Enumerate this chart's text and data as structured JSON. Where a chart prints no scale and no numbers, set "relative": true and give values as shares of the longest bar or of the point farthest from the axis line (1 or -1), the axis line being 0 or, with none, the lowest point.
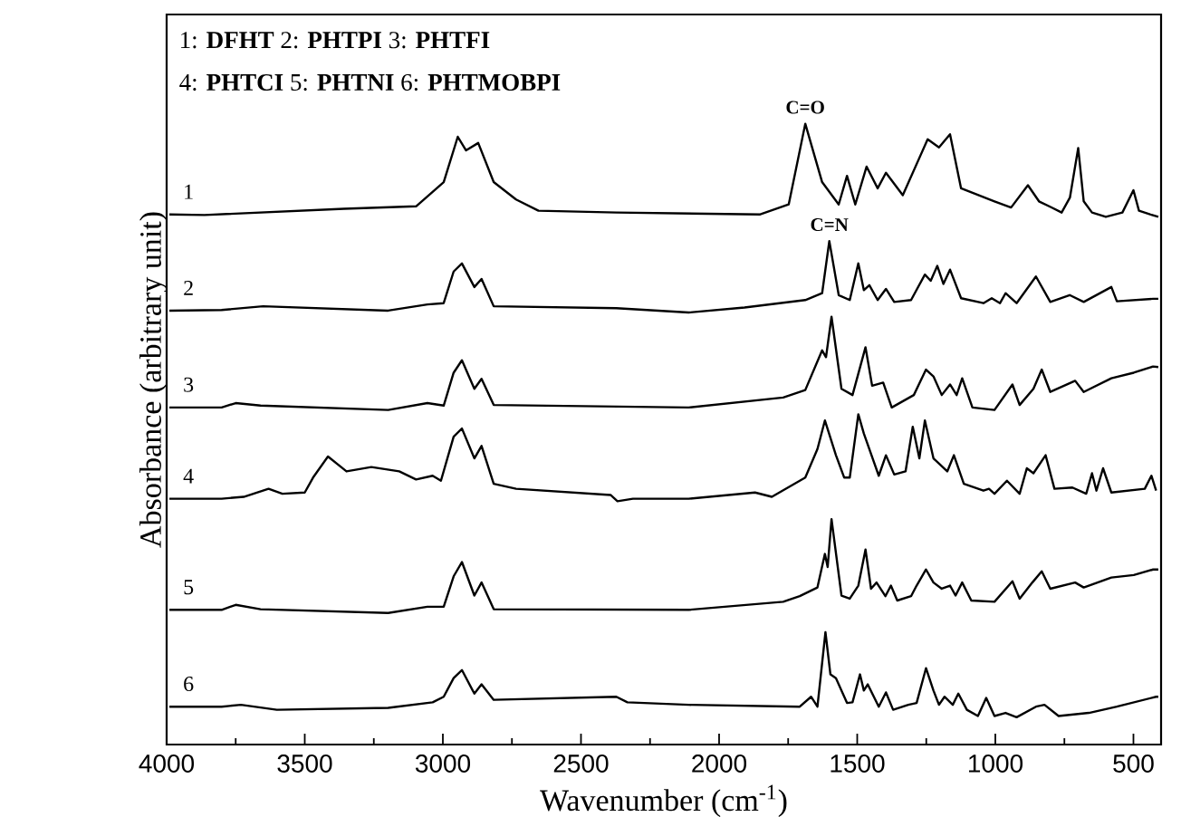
{
  "chart_data": {
    "type": "line",
    "relative": true,
    "marker": "none",
    "xlabel": "Wavenumber (cm$^{-1}$)",
    "ylabel": "Absorbance (arbitrary unit)",
    "xlim": [
      4000,
      400
    ],
    "xticks": [
      4000,
      {
        "value": 3750,
        "label": null
      },
      3500,
      {
        "value": 3250,
        "label": null
      },
      3000,
      {
        "value": 2750,
        "label": null
      },
      2500,
      {
        "value": 2250,
        "label": null
      },
      2000,
      {
        "value": 1750,
        "label": null
      },
      1500,
      {
        "value": 1250,
        "label": null
      },
      1000,
      {
        "value": 750,
        "label": null
      },
      500
    ],
    "annotations": [
      "1: **DFHT**   2: **PHTPI**   3: **PHTFI**",
      "4: **PHTCI**   5: **PHTNI**   6: **PHTMOBPI**",
      {
        "text": "**C=O**",
        "x": 1688,
        "y": 1.0
      },
      {
        "text": "**C=N**",
        "x": 1601,
        "y": 0.811
      }
    ],
    "series": [
      {
        "name": "1",
        "color": "#000000",
        "x": [
          3990,
          3863,
          3358,
          3097,
          2997,
          2946,
          2916,
          2872,
          2816,
          2735,
          2654,
          2372,
          1851,
          1748,
          1688,
          1627,
          1567,
          1537,
          1507,
          1466,
          1426,
          1396,
          1335,
          1245,
          1204,
          1164,
          1124,
          1003,
          943,
          882,
          842,
          800,
          760,
          730,
          700,
          680,
          650,
          600,
          540,
          500,
          480,
          440,
          410
        ],
        "values": [
          0.854,
          0.853,
          0.863,
          0.867,
          0.906,
          0.979,
          0.957,
          0.969,
          0.906,
          0.878,
          0.86,
          0.857,
          0.854,
          0.87,
          1.0,
          0.906,
          0.87,
          0.916,
          0.87,
          0.931,
          0.896,
          0.921,
          0.885,
          0.975,
          0.962,
          0.983,
          0.896,
          0.875,
          0.865,
          0.901,
          0.875,
          0.866,
          0.857,
          0.881,
          0.961,
          0.875,
          0.857,
          0.85,
          0.857,
          0.893,
          0.86,
          0.854,
          0.85
        ]
      },
      {
        "name": "2",
        "color": "#000000",
        "x": [
          3990,
          3801,
          3651,
          3198,
          3056,
          2997,
          2961,
          2931,
          2886,
          2860,
          2816,
          2372,
          2110,
          1908,
          1688,
          1627,
          1601,
          1567,
          1527,
          1496,
          1476,
          1456,
          1426,
          1396,
          1366,
          1305,
          1255,
          1234,
          1210,
          1188,
          1164,
          1124,
          1043,
          1013,
          983,
          963,
          923,
          853,
          801,
          731,
          680,
          580,
          560,
          429,
          410
        ],
        "values": [
          0.699,
          0.7,
          0.706,
          0.699,
          0.709,
          0.711,
          0.762,
          0.775,
          0.737,
          0.75,
          0.706,
          0.703,
          0.696,
          0.704,
          0.716,
          0.727,
          0.811,
          0.724,
          0.716,
          0.775,
          0.732,
          0.74,
          0.716,
          0.734,
          0.713,
          0.716,
          0.757,
          0.747,
          0.771,
          0.742,
          0.765,
          0.719,
          0.711,
          0.719,
          0.711,
          0.727,
          0.711,
          0.754,
          0.713,
          0.724,
          0.713,
          0.737,
          0.714,
          0.718,
          0.718
        ]
      },
      {
        "name": "3",
        "color": "#000000",
        "x": [
          3990,
          3801,
          3750,
          3660,
          3198,
          3056,
          2997,
          2961,
          2931,
          2886,
          2860,
          2816,
          2110,
          1768,
          1688,
          1627,
          1613,
          1593,
          1557,
          1517,
          1470,
          1446,
          1406,
          1375,
          1295,
          1251,
          1224,
          1194,
          1164,
          1140,
          1120,
          1083,
          1003,
          938,
          912,
          862,
          832,
          801,
          711,
          680,
          580,
          499,
          429,
          410
        ],
        "values": [
          0.543,
          0.543,
          0.55,
          0.546,
          0.539,
          0.55,
          0.546,
          0.599,
          0.619,
          0.573,
          0.589,
          0.547,
          0.543,
          0.559,
          0.571,
          0.635,
          0.624,
          0.689,
          0.573,
          0.563,
          0.64,
          0.578,
          0.583,
          0.543,
          0.563,
          0.604,
          0.593,
          0.563,
          0.58,
          0.563,
          0.59,
          0.543,
          0.539,
          0.58,
          0.547,
          0.573,
          0.604,
          0.568,
          0.586,
          0.568,
          0.59,
          0.599,
          0.609,
          0.608
        ]
      },
      {
        "name": "4",
        "color": "#000000",
        "x": [
          3990,
          3801,
          3721,
          3631,
          3581,
          3500,
          3470,
          3416,
          3349,
          3259,
          3158,
          3097,
          3037,
          3007,
          2961,
          2931,
          2886,
          2860,
          2816,
          2735,
          2393,
          2368,
          2312,
          2110,
          1870,
          1809,
          1688,
          1644,
          1617,
          1577,
          1547,
          1527,
          1496,
          1476,
          1422,
          1396,
          1366,
          1325,
          1299,
          1275,
          1255,
          1224,
          1174,
          1150,
          1114,
          1043,
          1023,
          1003,
          958,
          912,
          886,
          862,
          818,
          786,
          721,
          671,
          650,
          634,
          610,
          580,
          459,
          435,
          418
        ],
        "values": [
          0.396,
          0.396,
          0.399,
          0.412,
          0.404,
          0.406,
          0.43,
          0.464,
          0.44,
          0.447,
          0.44,
          0.427,
          0.433,
          0.425,
          0.496,
          0.509,
          0.461,
          0.481,
          0.42,
          0.412,
          0.402,
          0.392,
          0.396,
          0.396,
          0.406,
          0.399,
          0.43,
          0.476,
          0.522,
          0.466,
          0.43,
          0.43,
          0.532,
          0.501,
          0.433,
          0.466,
          0.435,
          0.44,
          0.512,
          0.461,
          0.522,
          0.461,
          0.44,
          0.466,
          0.42,
          0.409,
          0.412,
          0.404,
          0.425,
          0.404,
          0.445,
          0.437,
          0.466,
          0.412,
          0.414,
          0.404,
          0.437,
          0.409,
          0.445,
          0.406,
          0.412,
          0.433,
          0.409
        ]
      },
      {
        "name": "5",
        "color": "#000000",
        "x": [
          3990,
          3801,
          3750,
          3660,
          3198,
          3056,
          2997,
          2961,
          2931,
          2886,
          2860,
          2816,
          2110,
          1768,
          1708,
          1644,
          1617,
          1607,
          1593,
          1557,
          1527,
          1496,
          1470,
          1450,
          1430,
          1398,
          1378,
          1355,
          1305,
          1285,
          1251,
          1224,
          1194,
          1164,
          1144,
          1120,
          1087,
          1003,
          938,
          912,
          866,
          832,
          801,
          711,
          680,
          580,
          499,
          429,
          410
        ],
        "values": [
          0.217,
          0.217,
          0.225,
          0.218,
          0.212,
          0.222,
          0.222,
          0.271,
          0.294,
          0.24,
          0.261,
          0.218,
          0.217,
          0.23,
          0.239,
          0.253,
          0.307,
          0.286,
          0.363,
          0.24,
          0.235,
          0.256,
          0.314,
          0.251,
          0.261,
          0.239,
          0.256,
          0.232,
          0.239,
          0.256,
          0.282,
          0.261,
          0.251,
          0.256,
          0.24,
          0.261,
          0.232,
          0.23,
          0.263,
          0.235,
          0.261,
          0.279,
          0.251,
          0.261,
          0.253,
          0.269,
          0.273,
          0.282,
          0.282
        ]
      },
      {
        "name": "6",
        "color": "#000000",
        "x": [
          3990,
          3801,
          3731,
          3601,
          3198,
          3037,
          2997,
          2961,
          2931,
          2886,
          2860,
          2816,
          2372,
          2332,
          2110,
          1708,
          1667,
          1644,
          1615,
          1597,
          1577,
          1537,
          1517,
          1490,
          1476,
          1462,
          1422,
          1396,
          1370,
          1315,
          1285,
          1251,
          1224,
          1204,
          1184,
          1154,
          1134,
          1103,
          1063,
          1033,
          1003,
          963,
          923,
          853,
          822,
          771,
          661,
          560,
          418,
          410
        ],
        "values": [
          0.061,
          0.061,
          0.064,
          0.056,
          0.059,
          0.068,
          0.077,
          0.107,
          0.12,
          0.082,
          0.097,
          0.072,
          0.077,
          0.068,
          0.064,
          0.061,
          0.077,
          0.061,
          0.181,
          0.113,
          0.107,
          0.067,
          0.068,
          0.113,
          0.087,
          0.097,
          0.061,
          0.084,
          0.056,
          0.064,
          0.067,
          0.123,
          0.087,
          0.064,
          0.077,
          0.064,
          0.082,
          0.056,
          0.046,
          0.075,
          0.046,
          0.051,
          0.044,
          0.061,
          0.064,
          0.046,
          0.051,
          0.061,
          0.077,
          0.077
        ]
      }
    ]
  }
}
